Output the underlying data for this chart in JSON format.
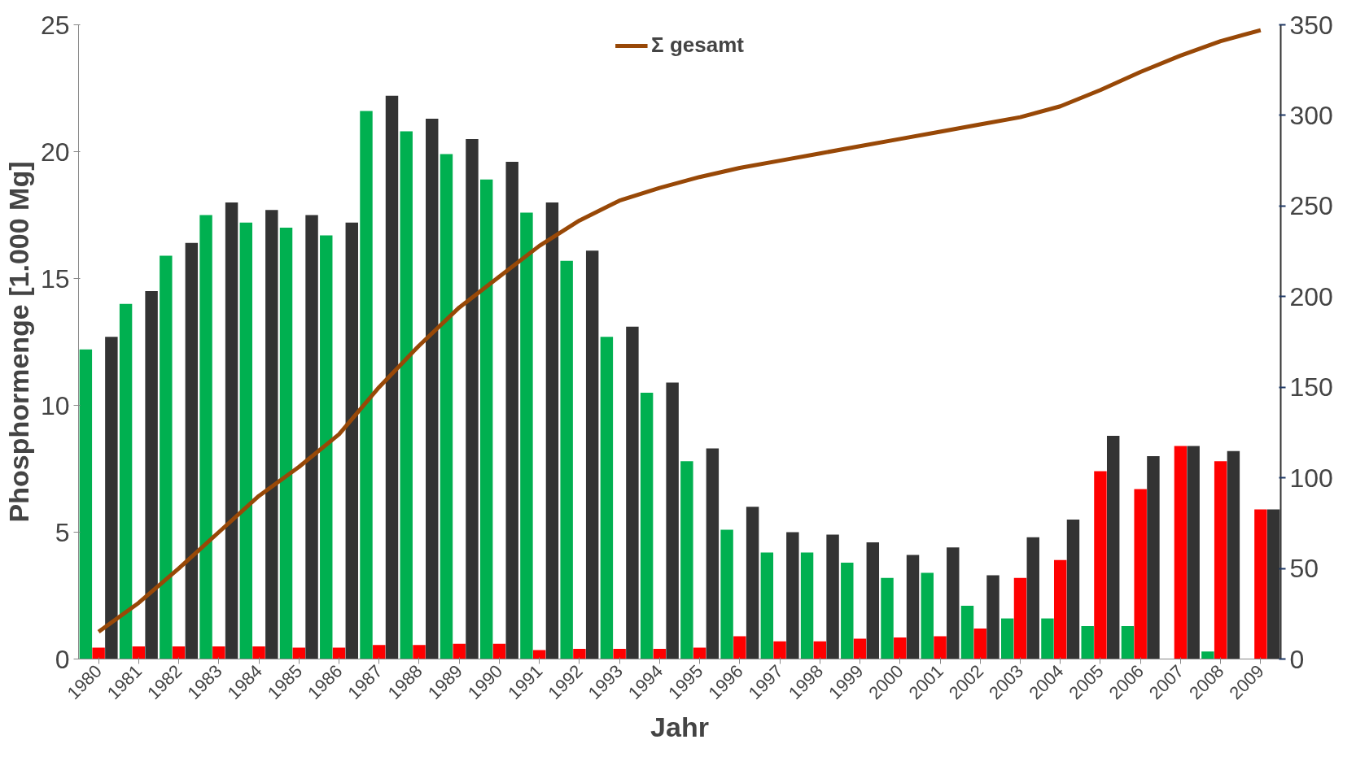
{
  "chart_data": {
    "type": "bar",
    "xlabel": "Jahr",
    "ylabel": "Phosphormenge [1.000 Mg]",
    "categories": [
      "1980",
      "1981",
      "1982",
      "1983",
      "1984",
      "1985",
      "1986",
      "1987",
      "1988",
      "1989",
      "1990",
      "1991",
      "1992",
      "1993",
      "1994",
      "1995",
      "1996",
      "1997",
      "1998",
      "1999",
      "2000",
      "2001",
      "2002",
      "2003",
      "2004",
      "2005",
      "2006",
      "2007",
      "2008",
      "2009"
    ],
    "ylim": [
      0,
      25
    ],
    "yticks": [
      0,
      5,
      10,
      15,
      20,
      25
    ],
    "y2lim": [
      0,
      350
    ],
    "y2ticks": [
      0,
      50,
      100,
      150,
      200,
      250,
      300,
      350
    ],
    "grid": false,
    "legend": "top",
    "series": [
      {
        "color": "#00b050",
        "values": [
          12.2,
          14.0,
          15.9,
          17.5,
          17.2,
          17.0,
          16.7,
          21.6,
          20.8,
          19.9,
          18.9,
          17.6,
          15.7,
          12.7,
          10.5,
          7.8,
          5.1,
          4.2,
          4.2,
          3.8,
          3.2,
          3.4,
          2.1,
          1.6,
          1.6,
          1.3,
          1.3,
          null,
          0.3,
          null
        ]
      },
      {
        "color": "#ff0000",
        "values": [
          0.45,
          0.5,
          0.5,
          0.5,
          0.5,
          0.45,
          0.45,
          0.55,
          0.55,
          0.6,
          0.6,
          0.35,
          0.4,
          0.4,
          0.4,
          0.45,
          0.9,
          0.7,
          0.7,
          0.8,
          0.85,
          0.9,
          1.2,
          3.2,
          3.9,
          7.4,
          6.7,
          8.4,
          7.8,
          5.9
        ]
      },
      {
        "color": "#333333",
        "values": [
          12.7,
          14.5,
          16.4,
          18.0,
          17.7,
          17.5,
          17.2,
          22.2,
          21.3,
          20.5,
          19.6,
          18.0,
          16.1,
          13.1,
          10.9,
          8.3,
          6.0,
          5.0,
          4.9,
          4.6,
          4.1,
          4.4,
          3.3,
          4.8,
          5.5,
          8.8,
          8.0,
          8.4,
          8.2,
          5.9
        ]
      },
      {
        "name": "Σ gesamt",
        "type": "line",
        "axis": "y2",
        "color": "#984807",
        "line_style": "solid",
        "values": [
          15,
          31,
          50,
          70,
          90,
          106,
          124,
          150,
          173,
          194,
          211,
          228,
          242,
          253,
          260,
          266,
          271,
          275,
          279,
          283,
          287,
          291,
          295,
          299,
          305,
          314,
          324,
          333,
          341,
          347
        ]
      }
    ]
  }
}
